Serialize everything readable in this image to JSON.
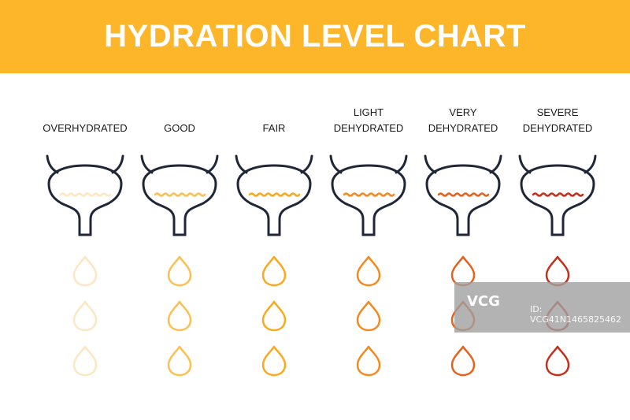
{
  "title": "HYDRATION LEVEL CHART",
  "columns": [
    {
      "label": "OVERHYDRATED",
      "color": "#fde6c2"
    },
    {
      "label": "GOOD",
      "color": "#fcbf52"
    },
    {
      "label": "FAIR",
      "color": "#f9aa1c"
    },
    {
      "label": "LIGHT DEHYDRATED",
      "color": "#f5891f"
    },
    {
      "label": "VERY DEHYDRATED",
      "color": "#e5611d"
    },
    {
      "label": "SEVERE DEHYDRATED",
      "color": "#c52f1c"
    }
  ],
  "outline_color": "#1f2637",
  "drops_per_column": 3,
  "watermark": {
    "logo": "VCG",
    "id": "ID: VCG41N1465825462"
  }
}
